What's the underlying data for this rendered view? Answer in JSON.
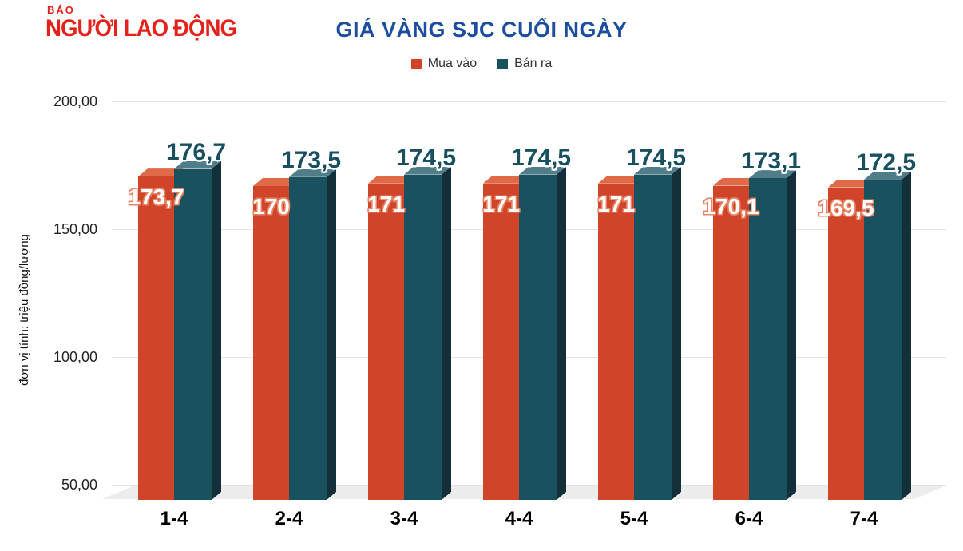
{
  "logo": {
    "small": "BÁO",
    "main": "NGƯỜI LAO ĐỘNG",
    "color": "#e3221c"
  },
  "header": {
    "title": "GIÁ VÀNG SJC CUỐI NGÀY",
    "color": "#1d4da0"
  },
  "legend": {
    "buy_label": "Mua vào",
    "sell_label": "Bán ra"
  },
  "y_axis_title": "đơn vị tính: triệu đồng/lượng",
  "chart_data": {
    "type": "bar",
    "title": "GIÁ VÀNG SJC CUỐI NGÀY",
    "subtitle": "",
    "categories": [
      "1-4",
      "2-4",
      "3-4",
      "4-4",
      "5-4",
      "6-4",
      "7-4"
    ],
    "series": [
      {
        "name": "Mua vào",
        "values": [
          173.7,
          170,
          171,
          171,
          171,
          170.1,
          169.5
        ],
        "labels": [
          "173,7",
          "170",
          "171",
          "171",
          "171",
          "170,1",
          "169,5"
        ],
        "color": "#d0452a",
        "top_color": "#e06a48"
      },
      {
        "name": "Bán ra",
        "values": [
          176.7,
          173.5,
          174.5,
          174.5,
          174.5,
          173.1,
          172.5
        ],
        "labels": [
          "176,7",
          "173,5",
          "174,5",
          "174,5",
          "174,5",
          "173,1",
          "172,5"
        ],
        "color": "#1a515f",
        "top_color": "#4f7d89",
        "side_color": "#13303a"
      }
    ],
    "yticks": [
      {
        "label": "200,00",
        "value": 200
      },
      {
        "label": "150,00",
        "value": 150
      },
      {
        "label": "100,00",
        "value": 100
      },
      {
        "label": "50,00",
        "value": 50
      }
    ],
    "ylabel": "đơn vị tính: triệu đồng/lượng",
    "xlabel": "",
    "ylim": [
      42,
      200
    ],
    "grid": true,
    "legend_position": "top",
    "style": "3d-column"
  }
}
